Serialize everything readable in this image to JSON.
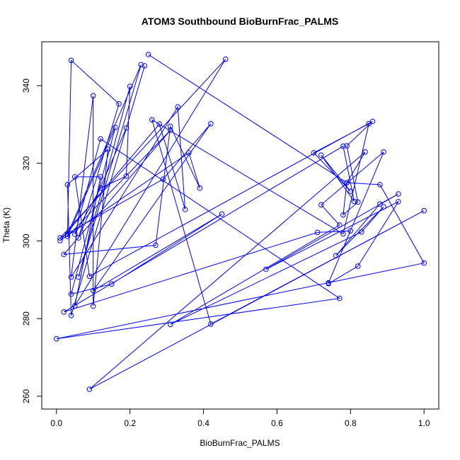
{
  "chart_data": {
    "type": "line",
    "title": "ATOM3 Southbound BioBurnFrac_PALMS",
    "xlabel": "BioBurnFrac_PALMS",
    "ylabel": "Theta (K)",
    "xlim": [
      -0.04,
      1.04
    ],
    "ylim": [
      256.7,
      351.3
    ],
    "xticks": [
      0.0,
      0.2,
      0.4,
      0.6,
      0.8,
      1.0
    ],
    "xtick_labels": [
      "0.0",
      "0.2",
      "0.4",
      "0.6",
      "0.8",
      "1.0"
    ],
    "yticks": [
      260,
      280,
      300,
      320,
      340
    ],
    "ytick_labels": [
      "260",
      "280",
      "300",
      "320",
      "340"
    ],
    "grid": false,
    "legend": "none",
    "color": "#0000ff",
    "series": [
      {
        "x": [
          0.25,
          0.79,
          0.88,
          1.0,
          0.0,
          0.77,
          0.12,
          0.05,
          0.12,
          0.19,
          0.2,
          0.06,
          0.23,
          0.03,
          0.04,
          0.17,
          0.06,
          0.19,
          0.24,
          0.04,
          0.03,
          0.14,
          0.1,
          0.1,
          0.04,
          0.33,
          0.35,
          0.28,
          0.01,
          0.36,
          0.39,
          0.31,
          0.27,
          0.02,
          0.31,
          0.03,
          0.16,
          0.04,
          0.15,
          0.45,
          0.1,
          0.42,
          0.29,
          0.01,
          0.46,
          0.05,
          0.12,
          0.05,
          0.09,
          0.86,
          0.79,
          0.82,
          0.78,
          0.79,
          0.84,
          0.09,
          1.0,
          0.42,
          0.26,
          0.78,
          0.85,
          0.7,
          0.8,
          0.72,
          0.81,
          0.78,
          0.02,
          0.71,
          0.8,
          0.74,
          0.89,
          0.72,
          0.77,
          0.31,
          0.83,
          0.89,
          0.76,
          0.88,
          0.93,
          0.57,
          0.93,
          0.82,
          0.74
        ],
        "y": [
          348.0,
          315.0,
          314.5,
          294.3,
          274.8,
          285.2,
          326.3,
          301.7,
          313.6,
          316.7,
          339.8,
          290.7,
          345.4,
          301.7,
          346.5,
          335.3,
          300.8,
          329.1,
          345.1,
          280.8,
          314.5,
          323.6,
          283.2,
          337.4,
          290.7,
          334.5,
          308.1,
          330.1,
          300.1,
          322.7,
          313.6,
          329.5,
          298.9,
          296.5,
          328.5,
          301.2,
          329.2,
          286.3,
          288.9,
          306.9,
          287.2,
          330.2,
          315.9,
          300.8,
          346.8,
          283.3,
          316.5,
          316.5,
          290.9,
          330.8,
          324.5,
          310.0,
          306.7,
          315.0,
          322.9,
          261.8,
          307.8,
          278.6,
          331.2,
          301.8,
          330.2,
          322.7,
          312.8,
          322.1,
          310.2,
          324.4,
          281.7,
          302.2,
          302.6,
          289.2,
          322.9,
          309.3,
          304.1,
          278.5,
          302.3,
          308.8,
          296.2,
          309.5,
          312.1,
          292.7,
          310.1,
          293.5,
          289.0
        ]
      }
    ]
  }
}
